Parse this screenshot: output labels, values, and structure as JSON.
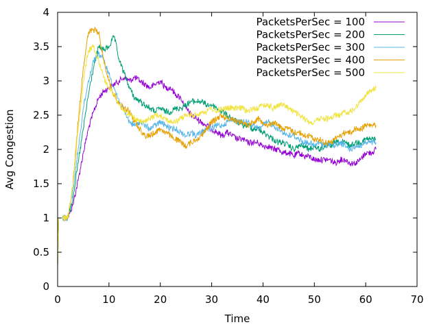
{
  "chart_data": {
    "type": "line",
    "xlabel": "Time",
    "ylabel": "Avg Congestion",
    "xlim": [
      0,
      70
    ],
    "ylim": [
      0,
      4
    ],
    "xticks": [
      0,
      10,
      20,
      30,
      40,
      50,
      60,
      70
    ],
    "yticks": [
      0,
      0.5,
      1,
      1.5,
      2,
      2.5,
      3,
      3.5,
      4
    ],
    "xtick_labels": [
      "0",
      "10",
      "20",
      "30",
      "40",
      "50",
      "60",
      "70"
    ],
    "ytick_labels": [
      "0",
      "0.5",
      "1",
      "1.5",
      "2",
      "2.5",
      "3",
      "3.5",
      "4"
    ],
    "grid": false,
    "legend_position": "top-right",
    "series": [
      {
        "name": "PacketsPerSec = 100",
        "color": "#9400d3",
        "x": [
          0,
          0.2,
          1,
          2,
          3,
          4,
          5,
          6,
          7,
          8,
          9,
          10,
          11,
          12,
          13,
          14,
          15,
          16,
          17,
          18,
          19,
          20,
          21,
          22,
          23,
          24,
          25,
          26,
          27,
          28,
          29,
          30,
          31,
          32,
          33,
          34,
          35,
          36,
          37,
          38,
          39,
          40,
          41,
          42,
          43,
          44,
          45,
          46,
          47,
          48,
          49,
          50,
          51,
          52,
          53,
          54,
          55,
          56,
          57,
          58,
          59,
          60,
          61,
          62
        ],
        "y": [
          0.3,
          1,
          1,
          1,
          1.2,
          1.55,
          1.95,
          2.3,
          2.55,
          2.75,
          2.85,
          2.9,
          2.95,
          3.0,
          3.05,
          3.0,
          3.05,
          3.0,
          2.95,
          2.9,
          2.95,
          3.0,
          2.9,
          2.9,
          2.8,
          2.75,
          2.6,
          2.5,
          2.45,
          2.4,
          2.35,
          2.3,
          2.25,
          2.2,
          2.25,
          2.2,
          2.15,
          2.15,
          2.1,
          2.1,
          2.1,
          2.05,
          2.05,
          2.0,
          2.0,
          1.95,
          1.95,
          1.9,
          1.95,
          1.9,
          1.9,
          1.85,
          1.85,
          1.85,
          1.85,
          1.8,
          1.85,
          1.85,
          1.8,
          1.8,
          1.85,
          1.95,
          1.95,
          2.0
        ]
      },
      {
        "name": "PacketsPerSec = 200",
        "color": "#009e73",
        "x": [
          0,
          0.2,
          1,
          2,
          3,
          4,
          5,
          6,
          7,
          8,
          9,
          10,
          11,
          12,
          13,
          14,
          15,
          16,
          17,
          18,
          19,
          20,
          21,
          22,
          23,
          24,
          25,
          26,
          27,
          28,
          29,
          30,
          31,
          32,
          33,
          34,
          35,
          36,
          37,
          38,
          39,
          40,
          41,
          42,
          43,
          44,
          45,
          46,
          47,
          48,
          49,
          50,
          51,
          52,
          53,
          54,
          55,
          56,
          57,
          58,
          59,
          60,
          61,
          62
        ],
        "y": [
          0.3,
          1,
          1,
          1,
          1.3,
          1.8,
          2.3,
          2.8,
          3.2,
          3.5,
          3.45,
          3.5,
          3.65,
          3.3,
          3.1,
          2.9,
          2.75,
          2.7,
          2.65,
          2.6,
          2.55,
          2.6,
          2.55,
          2.55,
          2.6,
          2.6,
          2.65,
          2.7,
          2.7,
          2.7,
          2.65,
          2.65,
          2.6,
          2.55,
          2.5,
          2.45,
          2.4,
          2.35,
          2.35,
          2.3,
          2.3,
          2.25,
          2.2,
          2.15,
          2.1,
          2.1,
          2.05,
          2.0,
          2.05,
          2.05,
          2.0,
          2.05,
          2.0,
          2.05,
          2.05,
          2.1,
          2.1,
          2.1,
          2.05,
          2.1,
          2.1,
          2.15,
          2.15,
          2.15
        ]
      },
      {
        "name": "PacketsPerSec = 300",
        "color": "#56b4e9",
        "x": [
          0,
          0.2,
          1,
          2,
          3,
          4,
          5,
          6,
          7,
          8,
          9,
          10,
          11,
          12,
          13,
          14,
          15,
          16,
          17,
          18,
          19,
          20,
          21,
          22,
          23,
          24,
          25,
          26,
          27,
          28,
          29,
          30,
          31,
          32,
          33,
          34,
          35,
          36,
          37,
          38,
          39,
          40,
          41,
          42,
          43,
          44,
          45,
          46,
          47,
          48,
          49,
          50,
          51,
          52,
          53,
          54,
          55,
          56,
          57,
          58,
          59,
          60,
          61,
          62
        ],
        "y": [
          0.3,
          1,
          1,
          1,
          1.4,
          2.0,
          2.6,
          3.0,
          3.3,
          3.4,
          3.3,
          3.1,
          2.9,
          2.7,
          2.55,
          2.4,
          2.35,
          2.4,
          2.35,
          2.3,
          2.35,
          2.4,
          2.35,
          2.3,
          2.3,
          2.25,
          2.2,
          2.25,
          2.2,
          2.25,
          2.3,
          2.3,
          2.35,
          2.35,
          2.4,
          2.45,
          2.4,
          2.4,
          2.4,
          2.35,
          2.3,
          2.35,
          2.4,
          2.35,
          2.3,
          2.25,
          2.2,
          2.2,
          2.15,
          2.1,
          2.1,
          2.05,
          2.1,
          2.05,
          2.1,
          2.05,
          2.1,
          2.05,
          2.0,
          2.05,
          2.05,
          2.1,
          2.1,
          2.1
        ]
      },
      {
        "name": "PacketsPerSec = 400",
        "color": "#e69f00",
        "x": [
          0,
          0.2,
          1,
          2,
          3,
          4,
          5,
          6,
          7,
          8,
          9,
          10,
          11,
          12,
          13,
          14,
          15,
          16,
          17,
          18,
          19,
          20,
          21,
          22,
          23,
          24,
          25,
          26,
          27,
          28,
          29,
          30,
          31,
          32,
          33,
          34,
          35,
          36,
          37,
          38,
          39,
          40,
          41,
          42,
          43,
          44,
          45,
          46,
          47,
          48,
          49,
          50,
          51,
          52,
          53,
          54,
          55,
          56,
          57,
          58,
          59,
          60,
          61,
          62
        ],
        "y": [
          0.3,
          1,
          1,
          1,
          1.5,
          2.4,
          3.2,
          3.7,
          3.75,
          3.7,
          3.3,
          3.0,
          2.8,
          2.65,
          2.6,
          2.55,
          2.4,
          2.3,
          2.2,
          2.2,
          2.25,
          2.3,
          2.25,
          2.2,
          2.15,
          2.1,
          2.05,
          2.1,
          2.15,
          2.2,
          2.3,
          2.4,
          2.45,
          2.5,
          2.45,
          2.45,
          2.4,
          2.4,
          2.35,
          2.4,
          2.45,
          2.4,
          2.35,
          2.4,
          2.35,
          2.3,
          2.3,
          2.25,
          2.25,
          2.2,
          2.2,
          2.15,
          2.15,
          2.1,
          2.1,
          2.15,
          2.2,
          2.25,
          2.25,
          2.3,
          2.3,
          2.35,
          2.35,
          2.35
        ]
      },
      {
        "name": "PacketsPerSec = 500",
        "color": "#f0e442",
        "x": [
          0,
          0.2,
          1,
          2,
          3,
          4,
          5,
          6,
          7,
          8,
          9,
          10,
          11,
          12,
          13,
          14,
          15,
          16,
          17,
          18,
          19,
          20,
          21,
          22,
          23,
          24,
          25,
          26,
          27,
          28,
          29,
          30,
          31,
          32,
          33,
          34,
          35,
          36,
          37,
          38,
          39,
          40,
          41,
          42,
          43,
          44,
          45,
          46,
          47,
          48,
          49,
          50,
          51,
          52,
          53,
          54,
          55,
          56,
          57,
          58,
          59,
          60,
          61,
          62
        ],
        "y": [
          0.3,
          1,
          1,
          1,
          1.5,
          2.3,
          3.0,
          3.45,
          3.5,
          3.3,
          3.05,
          2.9,
          2.8,
          2.65,
          2.55,
          2.5,
          2.45,
          2.4,
          2.4,
          2.45,
          2.5,
          2.5,
          2.45,
          2.4,
          2.4,
          2.45,
          2.5,
          2.5,
          2.5,
          2.55,
          2.55,
          2.6,
          2.55,
          2.6,
          2.6,
          2.6,
          2.6,
          2.6,
          2.55,
          2.6,
          2.6,
          2.65,
          2.65,
          2.6,
          2.65,
          2.65,
          2.6,
          2.55,
          2.5,
          2.45,
          2.4,
          2.4,
          2.45,
          2.45,
          2.45,
          2.5,
          2.5,
          2.55,
          2.55,
          2.6,
          2.7,
          2.8,
          2.85,
          2.9
        ]
      }
    ]
  }
}
